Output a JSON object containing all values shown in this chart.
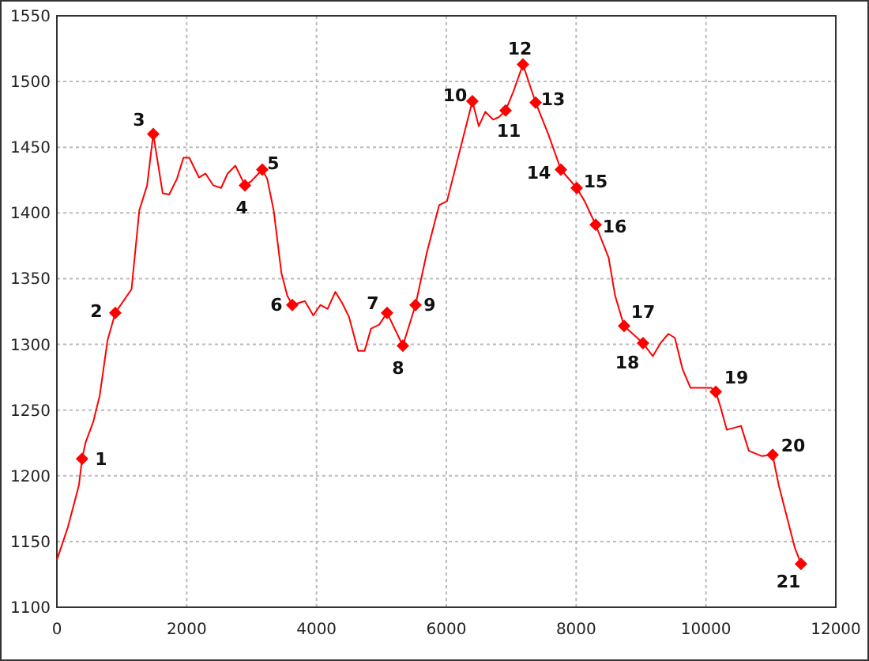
{
  "chart_data": {
    "type": "line",
    "xlim": [
      0,
      12000
    ],
    "ylim": [
      1100,
      1550
    ],
    "xticks": [
      0,
      2000,
      4000,
      6000,
      8000,
      10000,
      12000
    ],
    "yticks": [
      1100,
      1150,
      1200,
      1250,
      1300,
      1350,
      1400,
      1450,
      1500,
      1550
    ],
    "grid": true,
    "series": [
      {
        "color": "#ff0000",
        "marker": "none",
        "x": [
          0,
          170,
          340,
          389,
          440,
          560,
          660,
          780,
          900,
          1150,
          1270,
          1390,
          1485,
          1630,
          1730,
          1850,
          1950,
          2040,
          2190,
          2290,
          2410,
          2530,
          2630,
          2750,
          2897,
          2990,
          3164,
          3240,
          3340,
          3460,
          3550,
          3627,
          3820,
          3950,
          4060,
          4170,
          4290,
          4400,
          4500,
          4640,
          4740,
          4840,
          4965,
          5087,
          5330,
          5525,
          5700,
          5890,
          6010,
          6401,
          6500,
          6600,
          6720,
          6810,
          6913,
          7030,
          7180,
          7375,
          7570,
          7765,
          8008,
          8130,
          8300,
          8500,
          8600,
          8738,
          9030,
          9180,
          9300,
          9420,
          9520,
          9640,
          9760,
          10000,
          10080,
          10150,
          10220,
          10320,
          10540,
          10660,
          10860,
          11026,
          11120,
          11370,
          11464
        ],
        "values": [
          1136,
          1161,
          1193,
          1213,
          1225,
          1241,
          1261,
          1303,
          1324,
          1342,
          1402,
          1421,
          1460,
          1415,
          1414,
          1426,
          1442,
          1442,
          1427,
          1430,
          1421,
          1419,
          1430,
          1436,
          1421,
          1424,
          1433,
          1426,
          1402,
          1354,
          1337,
          1330,
          1333,
          1322,
          1330,
          1327,
          1340,
          1331,
          1321,
          1295,
          1295,
          1312,
          1315,
          1324,
          1299,
          1330,
          1370,
          1406,
          1409,
          1485,
          1466,
          1477,
          1471,
          1473,
          1478,
          1492,
          1513,
          1484,
          1460,
          1433,
          1419,
          1409,
          1391,
          1366,
          1337,
          1314,
          1301,
          1291,
          1301,
          1308,
          1305,
          1281,
          1267,
          1267,
          1267,
          1264,
          1253,
          1235,
          1238,
          1219,
          1215,
          1216,
          1193,
          1145,
          1133
        ]
      },
      {
        "type": "scatter",
        "color": "#ff0000",
        "marker": "diamond",
        "x": [
          389,
          900,
          1485,
          2897,
          3164,
          3627,
          5087,
          5330,
          5525,
          6401,
          6913,
          7180,
          7375,
          7765,
          8008,
          8300,
          8738,
          9030,
          10150,
          11026,
          11464
        ],
        "values": [
          1213,
          1324,
          1460,
          1421,
          1433,
          1330,
          1324,
          1299,
          1330,
          1485,
          1478,
          1513,
          1484,
          1433,
          1419,
          1391,
          1314,
          1301,
          1264,
          1216,
          1133
        ]
      }
    ],
    "annotations": [
      {
        "text": "1",
        "x": 389,
        "y": 1213
      },
      {
        "text": "2",
        "x": 900,
        "y": 1324
      },
      {
        "text": "3",
        "x": 1485,
        "y": 1460
      },
      {
        "text": "4",
        "x": 2897,
        "y": 1421
      },
      {
        "text": "5",
        "x": 3164,
        "y": 1433
      },
      {
        "text": "6",
        "x": 3627,
        "y": 1330
      },
      {
        "text": "7",
        "x": 5087,
        "y": 1324
      },
      {
        "text": "8",
        "x": 5330,
        "y": 1299
      },
      {
        "text": "9",
        "x": 5525,
        "y": 1330
      },
      {
        "text": "10",
        "x": 6401,
        "y": 1485
      },
      {
        "text": "11",
        "x": 6913,
        "y": 1478
      },
      {
        "text": "12",
        "x": 7180,
        "y": 1513
      },
      {
        "text": "13",
        "x": 7375,
        "y": 1484
      },
      {
        "text": "14",
        "x": 7765,
        "y": 1433
      },
      {
        "text": "15",
        "x": 8008,
        "y": 1419
      },
      {
        "text": "16",
        "x": 8300,
        "y": 1391
      },
      {
        "text": "17",
        "x": 8738,
        "y": 1314
      },
      {
        "text": "18",
        "x": 9030,
        "y": 1301
      },
      {
        "text": "19",
        "x": 10150,
        "y": 1264
      },
      {
        "text": "20",
        "x": 11026,
        "y": 1216
      },
      {
        "text": "21",
        "x": 11464,
        "y": 1133
      }
    ]
  }
}
